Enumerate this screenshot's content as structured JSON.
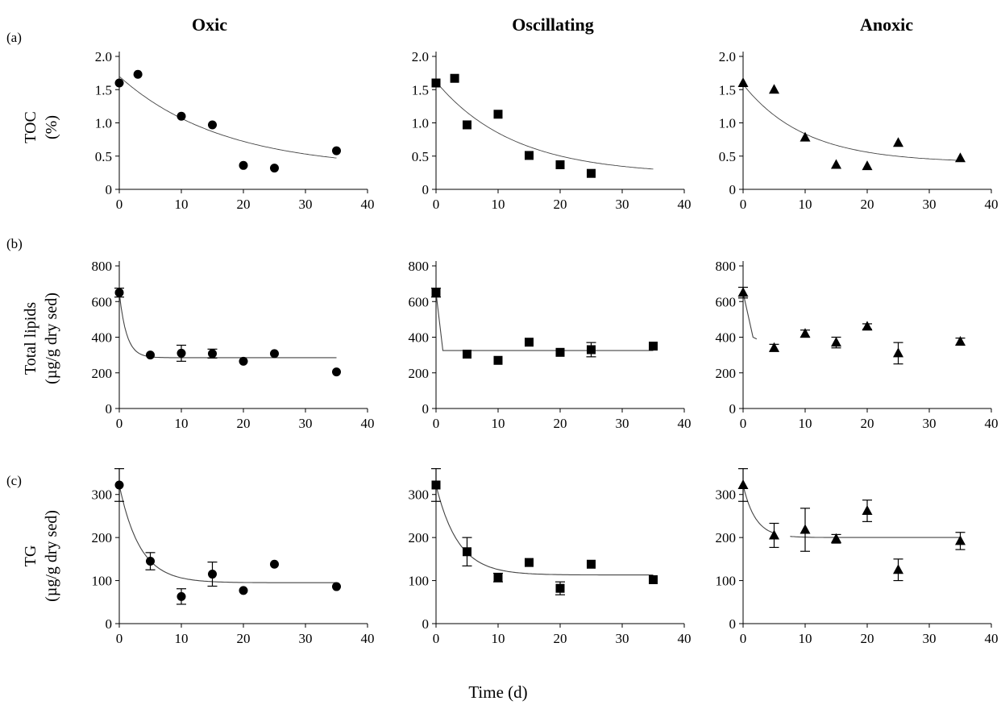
{
  "columns": [
    "Oxic",
    "Oscillating",
    "Anoxic"
  ],
  "row_letters": [
    "(a)",
    "(b)",
    "(c)"
  ],
  "ylabels": [
    [
      "TOC",
      "(%)"
    ],
    [
      "Total lipids",
      "(µg/g dry sed)"
    ],
    [
      "TG",
      "(µg/g dry sed)"
    ]
  ],
  "xlabel": "Time (d)",
  "colors": {
    "marker": "#000000",
    "fit_line": "#444444"
  },
  "chart_data": [
    {
      "type": "scatter",
      "row": 0,
      "col": 0,
      "marker": "circle",
      "xlim": [
        0,
        40
      ],
      "ylim": [
        0,
        2
      ],
      "xticks": [
        0,
        10,
        20,
        30,
        40
      ],
      "yticks": [
        0,
        0.5,
        1,
        1.5,
        2
      ],
      "ytick_labels": [
        "0",
        "0.5",
        "1.0",
        "1.5",
        "2.0"
      ],
      "x": [
        0,
        3,
        10,
        15,
        20,
        25,
        35
      ],
      "y": [
        1.6,
        1.73,
        1.1,
        0.97,
        0.36,
        0.32,
        0.58
      ],
      "fit": {
        "x0": 0,
        "x1": 35,
        "breaks": [],
        "c0": 1.7,
        "k": 0.06,
        "inf": 0.3
      }
    },
    {
      "type": "scatter",
      "row": 0,
      "col": 1,
      "marker": "square",
      "xlim": [
        0,
        40
      ],
      "ylim": [
        0,
        2
      ],
      "xticks": [
        0,
        10,
        20,
        30,
        40
      ],
      "yticks": [
        0,
        0.5,
        1,
        1.5,
        2
      ],
      "ytick_labels": [
        "0",
        "0.5",
        "1.0",
        "1.5",
        "2.0"
      ],
      "x": [
        0,
        3,
        5,
        10,
        15,
        20,
        25
      ],
      "y": [
        1.6,
        1.67,
        0.97,
        1.13,
        0.51,
        0.37,
        0.24
      ],
      "fit": {
        "x0": 0,
        "x1": 35,
        "breaks": [],
        "c0": 1.62,
        "k": 0.08,
        "inf": 0.22
      }
    },
    {
      "type": "scatter",
      "row": 0,
      "col": 2,
      "marker": "triangle",
      "xlim": [
        0,
        40
      ],
      "ylim": [
        0,
        2
      ],
      "xticks": [
        0,
        10,
        20,
        30,
        40
      ],
      "yticks": [
        0,
        0.5,
        1,
        1.5,
        2
      ],
      "ytick_labels": [
        "0",
        "0.5",
        "1.0",
        "1.5",
        "2.0"
      ],
      "x": [
        0,
        5,
        10,
        15,
        20,
        25,
        35
      ],
      "y": [
        1.6,
        1.5,
        0.78,
        0.37,
        0.35,
        0.7,
        0.47
      ],
      "fit": {
        "x0": 0,
        "x1": 35,
        "breaks": [],
        "c0": 1.58,
        "k": 0.1,
        "inf": 0.4
      }
    },
    {
      "type": "scatter",
      "row": 1,
      "col": 0,
      "marker": "circle",
      "xlim": [
        0,
        40
      ],
      "ylim": [
        0,
        800
      ],
      "xticks": [
        0,
        10,
        20,
        30,
        40
      ],
      "yticks": [
        0,
        200,
        400,
        600,
        800
      ],
      "ytick_labels": [
        "0",
        "200",
        "400",
        "600",
        "800"
      ],
      "x": [
        0,
        5,
        10,
        15,
        20,
        25,
        35
      ],
      "y": [
        650,
        300,
        310,
        308,
        265,
        308,
        205
      ],
      "err": [
        25,
        0,
        45,
        25,
        0,
        0,
        0
      ],
      "fit": {
        "x0": 0,
        "x1": 35,
        "breaks": [],
        "c0": 650,
        "k": 0.85,
        "inf": 285
      }
    },
    {
      "type": "scatter",
      "row": 1,
      "col": 1,
      "marker": "square",
      "xlim": [
        0,
        40
      ],
      "ylim": [
        0,
        800
      ],
      "xticks": [
        0,
        10,
        20,
        30,
        40
      ],
      "yticks": [
        0,
        200,
        400,
        600,
        800
      ],
      "ytick_labels": [
        "0",
        "200",
        "400",
        "600",
        "800"
      ],
      "x": [
        0,
        5,
        10,
        15,
        20,
        25,
        35
      ],
      "y": [
        650,
        305,
        270,
        372,
        315,
        330,
        350
      ],
      "err": [
        25,
        0,
        0,
        0,
        0,
        40,
        0
      ],
      "fit": {
        "x0": 0,
        "x1": 35,
        "breaks": [
          [
            1.1,
            325
          ]
        ],
        "c0": 650,
        "k": 0,
        "inf": 325
      }
    },
    {
      "type": "scatter",
      "row": 1,
      "col": 2,
      "marker": "triangle",
      "xlim": [
        0,
        40
      ],
      "ylim": [
        0,
        800
      ],
      "xticks": [
        0,
        10,
        20,
        30,
        40
      ],
      "yticks": [
        0,
        200,
        400,
        600,
        800
      ],
      "ytick_labels": [
        "0",
        "200",
        "400",
        "600",
        "800"
      ],
      "x": [
        0,
        5,
        10,
        15,
        20,
        25,
        35
      ],
      "y": [
        650,
        340,
        420,
        370,
        460,
        310,
        375
      ],
      "err": [
        30,
        20,
        20,
        30,
        15,
        60,
        20
      ],
      "fit": {
        "x0": 0,
        "x1": 2.2,
        "breaks": [
          [
            1.6,
            400
          ],
          [
            2.2,
            390
          ]
        ],
        "c0": 650,
        "k": 0,
        "inf": 390
      }
    },
    {
      "type": "scatter",
      "row": 2,
      "col": 0,
      "marker": "circle",
      "xlim": [
        0,
        40
      ],
      "ylim": [
        0,
        350
      ],
      "xticks": [
        0,
        10,
        20,
        30,
        40
      ],
      "yticks": [
        0,
        100,
        200,
        300
      ],
      "ytick_labels": [
        "0",
        "100",
        "200",
        "300"
      ],
      "x": [
        0,
        5,
        10,
        15,
        20,
        25,
        35
      ],
      "y": [
        322,
        145,
        63,
        115,
        77,
        138,
        86
      ],
      "err": [
        38,
        20,
        18,
        28,
        0,
        0,
        0
      ],
      "fit": {
        "x0": 0,
        "x1": 35,
        "breaks": [],
        "c0": 322,
        "k": 0.3,
        "inf": 95
      }
    },
    {
      "type": "scatter",
      "row": 2,
      "col": 1,
      "marker": "square",
      "xlim": [
        0,
        40
      ],
      "ylim": [
        0,
        350
      ],
      "xticks": [
        0,
        10,
        20,
        30,
        40
      ],
      "yticks": [
        0,
        100,
        200,
        300
      ],
      "ytick_labels": [
        "0",
        "100",
        "200",
        "300"
      ],
      "x": [
        0,
        5,
        10,
        15,
        20,
        25,
        35
      ],
      "y": [
        322,
        167,
        107,
        142,
        82,
        138,
        102
      ],
      "err": [
        38,
        33,
        10,
        0,
        15,
        0,
        0
      ],
      "fit": {
        "x0": 0,
        "x1": 35,
        "breaks": [],
        "c0": 322,
        "k": 0.28,
        "inf": 113
      }
    },
    {
      "type": "scatter",
      "row": 2,
      "col": 2,
      "marker": "triangle",
      "xlim": [
        0,
        40
      ],
      "ylim": [
        0,
        350
      ],
      "xticks": [
        0,
        10,
        20,
        30,
        40
      ],
      "yticks": [
        0,
        100,
        200,
        300
      ],
      "ytick_labels": [
        "0",
        "100",
        "200",
        "300"
      ],
      "x": [
        0,
        5,
        10,
        15,
        20,
        25,
        35
      ],
      "y": [
        322,
        205,
        218,
        197,
        262,
        125,
        192
      ],
      "err": [
        38,
        28,
        50,
        10,
        25,
        25,
        20
      ],
      "fit": {
        "x0": 0,
        "x1": 35,
        "breaks": [],
        "c0": 322,
        "k": 0.5,
        "inf": 200,
        "gap": [
          5.5,
          7.5
        ]
      }
    }
  ]
}
